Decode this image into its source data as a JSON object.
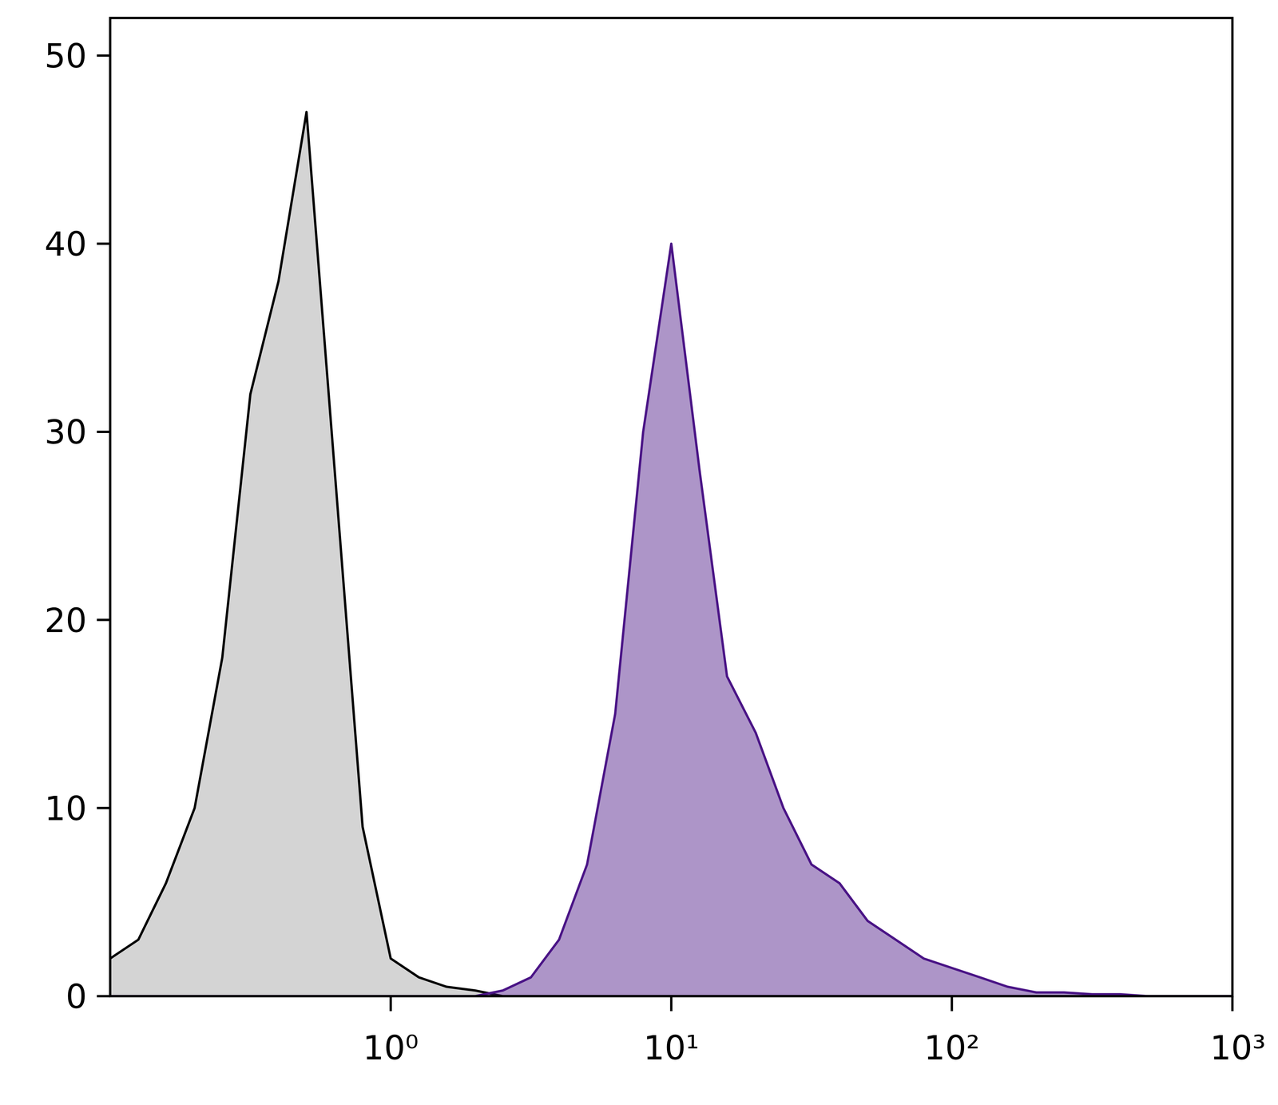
{
  "chart_data": {
    "type": "area",
    "log": "x",
    "x": [
      0.1,
      0.126,
      0.158,
      0.2,
      0.251,
      0.316,
      0.398,
      0.501,
      0.631,
      0.794,
      1,
      1.26,
      1.58,
      2,
      2.51,
      3.16,
      3.98,
      5.01,
      6.31,
      7.94,
      10,
      12.6,
      15.8,
      20,
      25.1,
      31.6,
      39.8,
      50.1,
      63.1,
      79.4,
      100,
      126,
      158,
      200,
      251,
      316,
      398,
      501,
      631,
      794,
      1000
    ],
    "series": [
      {
        "color": "#000000",
        "values": [
          2,
          3,
          6,
          10,
          18,
          32,
          38,
          47,
          28,
          9,
          2,
          1,
          0.5,
          0.3,
          0,
          0,
          0,
          0,
          0,
          0,
          0,
          0,
          0,
          0,
          0,
          0,
          0,
          0,
          0,
          0,
          0,
          0,
          0,
          0,
          0,
          0,
          0,
          0,
          0,
          0,
          0
        ]
      },
      {
        "color": "#4a1486",
        "values": [
          0,
          0,
          0,
          0,
          0,
          0,
          0,
          0,
          0,
          0,
          0,
          0,
          0,
          0,
          0.3,
          1,
          3,
          7,
          15,
          30,
          40,
          28,
          17,
          14,
          10,
          7,
          6,
          4,
          3,
          2,
          1.5,
          1,
          0.5,
          0.2,
          0.2,
          0.1,
          0.1,
          0,
          0,
          0,
          0
        ]
      }
    ],
    "xlim": [
      0.1,
      1000
    ],
    "xticks": [
      {
        "value": 1,
        "label": "10⁰"
      },
      {
        "value": 10,
        "label": "10¹"
      },
      {
        "value": 100,
        "label": "10²"
      },
      {
        "value": 1000,
        "label": "10³"
      }
    ],
    "ylim": [
      0,
      52
    ],
    "yticks": [
      0,
      10,
      20,
      30,
      40,
      50
    ]
  }
}
